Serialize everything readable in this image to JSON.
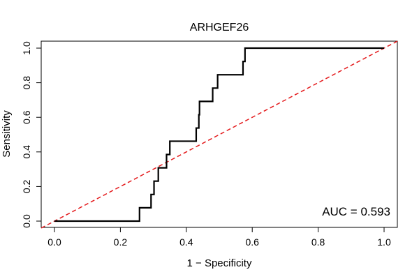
{
  "chart_data": {
    "type": "line",
    "title": "ARHGEF26",
    "xlabel": "1 − Specificity",
    "ylabel": "Sensitivity",
    "xlim": [
      0,
      1
    ],
    "ylim": [
      0,
      1
    ],
    "x_ticks": [
      0.0,
      0.2,
      0.4,
      0.6,
      0.8,
      1.0
    ],
    "x_tick_labels": [
      "0.0",
      "0.2",
      "0.4",
      "0.6",
      "0.8",
      "1.0"
    ],
    "y_ticks": [
      0.0,
      0.2,
      0.4,
      0.6,
      0.8,
      1.0
    ],
    "y_tick_labels": [
      "0.0",
      "0.2",
      "0.4",
      "0.6",
      "0.8",
      "1.0"
    ],
    "annotation": "AUC = 0.593",
    "series": [
      {
        "name": "ROC curve",
        "color": "#000000",
        "x": [
          0.0,
          0.258,
          0.258,
          0.293,
          0.293,
          0.302,
          0.302,
          0.315,
          0.315,
          0.34,
          0.34,
          0.35,
          0.35,
          0.43,
          0.43,
          0.438,
          0.438,
          0.44,
          0.44,
          0.48,
          0.48,
          0.495,
          0.495,
          0.572,
          0.572,
          0.578,
          0.578,
          1.0
        ],
        "y": [
          0.0,
          0.0,
          0.077,
          0.077,
          0.154,
          0.154,
          0.231,
          0.231,
          0.308,
          0.308,
          0.385,
          0.385,
          0.462,
          0.462,
          0.538,
          0.538,
          0.615,
          0.615,
          0.692,
          0.692,
          0.769,
          0.769,
          0.846,
          0.846,
          0.923,
          0.923,
          1.0,
          1.0
        ]
      },
      {
        "name": "Reference diagonal",
        "color": "#e41a1c",
        "style": "dashed",
        "x": [
          0,
          1
        ],
        "y": [
          0,
          1
        ]
      }
    ]
  }
}
